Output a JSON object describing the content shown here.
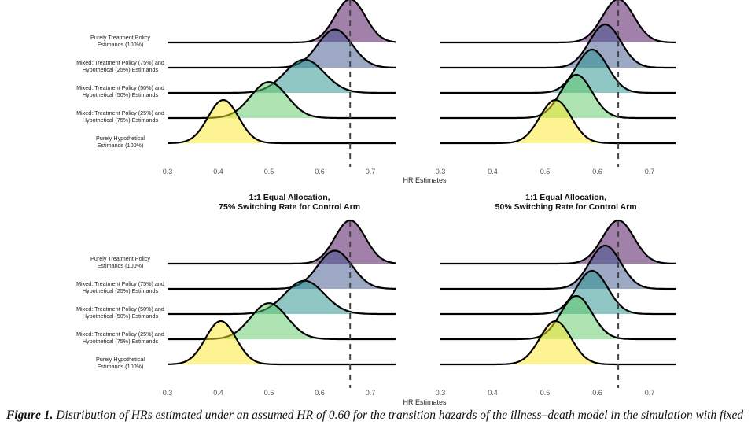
{
  "caption": {
    "label": "Figure 1.",
    "text": "Distribution of HRs estimated under an assumed HR of 0.60 for the transition hazards of the illness–death model in the simulation with fixed"
  },
  "colors": [
    "#440154",
    "#3b528b",
    "#21908c",
    "#5dc963",
    "#fde725"
  ],
  "chart_data": [
    {
      "type": "ridgeline",
      "panel": "top-left",
      "title": [],
      "xlabel": "HR Estimates",
      "xlim": [
        0.3,
        0.75
      ],
      "xticks": [
        "0.3",
        "0.4",
        "0.5",
        "0.6",
        "0.7"
      ],
      "reference_line": 0.66,
      "categories": [
        "Purely Treatment Policy|Estimands (100%)",
        "Mixed: Treatment Policy (75%) and|Hypothetical (25%) Estimands",
        "Mixed: Treatment Policy (50%) and|Hypothetical (50%) Estimands",
        "Mixed: Treatment Policy (25%) and|Hypothetical (75%) Estimands",
        "Purely Hypothetical|Estimands (100%)"
      ],
      "series": [
        {
          "mean": 0.66,
          "sd": 0.03
        },
        {
          "mean": 0.63,
          "sd": 0.034
        },
        {
          "mean": 0.57,
          "sd": 0.039
        },
        {
          "mean": 0.5,
          "sd": 0.036
        },
        {
          "mean": 0.41,
          "sd": 0.03
        }
      ]
    },
    {
      "type": "ridgeline",
      "panel": "top-right",
      "title": [
        "1:1 Equal Allocation,",
        "50% Switching Rate for Control Arm"
      ],
      "xlabel": "",
      "xlim": [
        0.3,
        0.75
      ],
      "xticks": [
        "0.3",
        "0.4",
        "0.5",
        "0.6",
        "0.7"
      ],
      "reference_line": 0.64,
      "series": [
        {
          "mean": 0.64,
          "sd": 0.03
        },
        {
          "mean": 0.615,
          "sd": 0.03
        },
        {
          "mean": 0.59,
          "sd": 0.03
        },
        {
          "mean": 0.56,
          "sd": 0.03
        },
        {
          "mean": 0.52,
          "sd": 0.03
        }
      ]
    },
    {
      "type": "ridgeline",
      "panel": "bottom-left",
      "title": [
        "1:1 Equal Allocation,",
        "75% Switching Rate for Control Arm"
      ],
      "xlabel": "HR Estimates",
      "xlim": [
        0.3,
        0.75
      ],
      "xticks": [
        "0.3",
        "0.4",
        "0.5",
        "0.6",
        "0.7"
      ],
      "reference_line": 0.66,
      "categories": [
        "Purely Treatment Policy|Estimands (100%)",
        "Mixed: Treatment Policy (75%) and|Hypothetical (25%) Estimands",
        "Mixed: Treatment Policy (50%) and|Hypothetical (50%) Estimands",
        "Mixed: Treatment Policy (25%) and|Hypothetical (75%) Estimands",
        "Purely Hypothetical|Estimands (100%)"
      ],
      "series": [
        {
          "mean": 0.66,
          "sd": 0.03
        },
        {
          "mean": 0.63,
          "sd": 0.034
        },
        {
          "mean": 0.57,
          "sd": 0.039
        },
        {
          "mean": 0.5,
          "sd": 0.036
        },
        {
          "mean": 0.405,
          "sd": 0.03
        }
      ]
    },
    {
      "type": "ridgeline",
      "panel": "bottom-right",
      "title": [],
      "xlabel": "",
      "xlim": [
        0.3,
        0.75
      ],
      "xticks": [
        "0.3",
        "0.4",
        "0.5",
        "0.6",
        "0.7"
      ],
      "reference_line": 0.64,
      "series": [
        {
          "mean": 0.64,
          "sd": 0.03
        },
        {
          "mean": 0.615,
          "sd": 0.03
        },
        {
          "mean": 0.59,
          "sd": 0.03
        },
        {
          "mean": 0.56,
          "sd": 0.03
        },
        {
          "mean": 0.52,
          "sd": 0.03
        }
      ]
    }
  ]
}
